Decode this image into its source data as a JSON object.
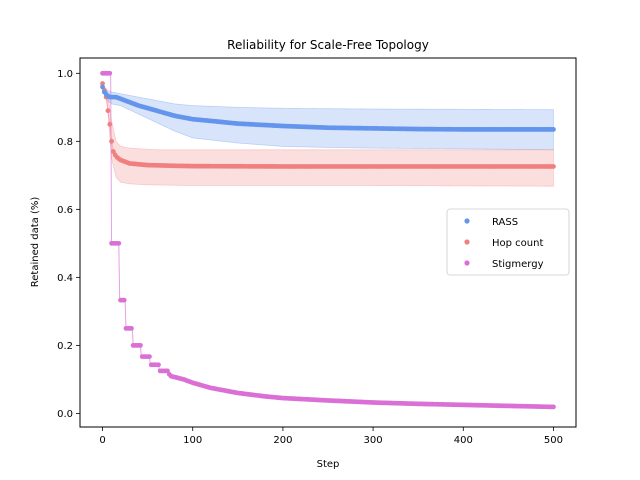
{
  "chart_data": {
    "type": "scatter",
    "title": "Reliability for Scale-Free Topology",
    "xlabel": "Step",
    "ylabel": "Retained data (%)",
    "xlim": [
      -25,
      525
    ],
    "ylim": [
      -0.04,
      1.045
    ],
    "xticks": [
      0,
      100,
      200,
      300,
      400,
      500
    ],
    "yticks": [
      0.0,
      0.2,
      0.4,
      0.6,
      0.8,
      1.0
    ],
    "grid": false,
    "legend_position": "center-right",
    "series": [
      {
        "name": "RASS",
        "color": "#6495ed",
        "band_color": "#6495ed",
        "mean": [
          [
            0,
            0.96
          ],
          [
            2,
            0.945
          ],
          [
            5,
            0.935
          ],
          [
            8,
            0.93
          ],
          [
            15,
            0.93
          ],
          [
            20,
            0.925
          ],
          [
            30,
            0.915
          ],
          [
            40,
            0.905
          ],
          [
            60,
            0.89
          ],
          [
            80,
            0.875
          ],
          [
            100,
            0.865
          ],
          [
            120,
            0.86
          ],
          [
            150,
            0.852
          ],
          [
            200,
            0.845
          ],
          [
            250,
            0.84
          ],
          [
            300,
            0.838
          ],
          [
            350,
            0.836
          ],
          [
            400,
            0.835
          ],
          [
            450,
            0.835
          ],
          [
            500,
            0.835
          ]
        ],
        "lower": [
          [
            0,
            0.96
          ],
          [
            5,
            0.92
          ],
          [
            10,
            0.91
          ],
          [
            20,
            0.905
          ],
          [
            40,
            0.88
          ],
          [
            60,
            0.855
          ],
          [
            80,
            0.83
          ],
          [
            100,
            0.81
          ],
          [
            150,
            0.795
          ],
          [
            200,
            0.785
          ],
          [
            250,
            0.782
          ],
          [
            300,
            0.78
          ],
          [
            400,
            0.778
          ],
          [
            500,
            0.775
          ]
        ],
        "upper": [
          [
            0,
            0.96
          ],
          [
            5,
            0.95
          ],
          [
            10,
            0.945
          ],
          [
            20,
            0.94
          ],
          [
            40,
            0.93
          ],
          [
            60,
            0.92
          ],
          [
            80,
            0.91
          ],
          [
            100,
            0.905
          ],
          [
            150,
            0.9
          ],
          [
            200,
            0.897
          ],
          [
            300,
            0.895
          ],
          [
            400,
            0.894
          ],
          [
            500,
            0.893
          ]
        ]
      },
      {
        "name": "Hop count",
        "color": "#f08080",
        "band_color": "#f08080",
        "mean": [
          [
            0,
            0.97
          ],
          [
            2,
            0.95
          ],
          [
            4,
            0.93
          ],
          [
            6,
            0.89
          ],
          [
            8,
            0.85
          ],
          [
            10,
            0.8
          ],
          [
            12,
            0.77
          ],
          [
            15,
            0.755
          ],
          [
            20,
            0.745
          ],
          [
            30,
            0.735
          ],
          [
            50,
            0.73
          ],
          [
            80,
            0.728
          ],
          [
            100,
            0.727
          ],
          [
            200,
            0.726
          ],
          [
            300,
            0.726
          ],
          [
            400,
            0.726
          ],
          [
            500,
            0.726
          ]
        ],
        "lower": [
          [
            0,
            0.97
          ],
          [
            5,
            0.92
          ],
          [
            10,
            0.75
          ],
          [
            15,
            0.695
          ],
          [
            20,
            0.68
          ],
          [
            30,
            0.675
          ],
          [
            50,
            0.672
          ],
          [
            100,
            0.67
          ],
          [
            300,
            0.67
          ],
          [
            500,
            0.668
          ]
        ],
        "upper": [
          [
            0,
            0.97
          ],
          [
            5,
            0.95
          ],
          [
            10,
            0.86
          ],
          [
            15,
            0.8
          ],
          [
            20,
            0.785
          ],
          [
            30,
            0.78
          ],
          [
            60,
            0.775
          ],
          [
            100,
            0.775
          ],
          [
            300,
            0.775
          ],
          [
            500,
            0.775
          ]
        ]
      },
      {
        "name": "Stigmergy",
        "color": "#da70d6",
        "band_color": "#da70d6",
        "mean": [
          [
            0,
            1.0
          ],
          [
            9,
            1.0
          ],
          [
            10,
            0.5
          ],
          [
            18,
            0.5
          ],
          [
            19,
            0.333
          ],
          [
            25,
            0.333
          ],
          [
            26,
            0.25
          ],
          [
            33,
            0.25
          ],
          [
            34,
            0.2
          ],
          [
            42,
            0.2
          ],
          [
            43,
            0.167
          ],
          [
            52,
            0.167
          ],
          [
            53,
            0.143
          ],
          [
            62,
            0.143
          ],
          [
            63,
            0.125
          ],
          [
            72,
            0.125
          ],
          [
            75,
            0.11
          ],
          [
            90,
            0.1
          ],
          [
            100,
            0.09
          ],
          [
            120,
            0.075
          ],
          [
            150,
            0.06
          ],
          [
            180,
            0.05
          ],
          [
            200,
            0.045
          ],
          [
            250,
            0.038
          ],
          [
            300,
            0.032
          ],
          [
            350,
            0.028
          ],
          [
            400,
            0.025
          ],
          [
            450,
            0.022
          ],
          [
            500,
            0.019
          ]
        ],
        "lower": [
          [
            0,
            1.0
          ],
          [
            9,
            1.0
          ],
          [
            10,
            0.5
          ],
          [
            18,
            0.5
          ],
          [
            19,
            0.333
          ],
          [
            25,
            0.333
          ],
          [
            26,
            0.25
          ],
          [
            33,
            0.25
          ],
          [
            34,
            0.2
          ],
          [
            42,
            0.2
          ],
          [
            43,
            0.167
          ],
          [
            52,
            0.167
          ],
          [
            53,
            0.143
          ],
          [
            62,
            0.143
          ],
          [
            63,
            0.125
          ],
          [
            72,
            0.125
          ],
          [
            75,
            0.11
          ],
          [
            90,
            0.1
          ],
          [
            100,
            0.09
          ],
          [
            120,
            0.075
          ],
          [
            150,
            0.06
          ],
          [
            180,
            0.05
          ],
          [
            200,
            0.045
          ],
          [
            250,
            0.038
          ],
          [
            300,
            0.032
          ],
          [
            350,
            0.028
          ],
          [
            400,
            0.025
          ],
          [
            450,
            0.022
          ],
          [
            500,
            0.019
          ]
        ],
        "upper": [
          [
            0,
            1.0
          ],
          [
            9,
            1.0
          ],
          [
            10,
            0.5
          ],
          [
            18,
            0.5
          ],
          [
            19,
            0.333
          ],
          [
            25,
            0.333
          ],
          [
            26,
            0.25
          ],
          [
            33,
            0.25
          ],
          [
            34,
            0.2
          ],
          [
            42,
            0.2
          ],
          [
            43,
            0.167
          ],
          [
            52,
            0.167
          ],
          [
            53,
            0.143
          ],
          [
            62,
            0.143
          ],
          [
            63,
            0.125
          ],
          [
            72,
            0.125
          ],
          [
            75,
            0.11
          ],
          [
            90,
            0.1
          ],
          [
            100,
            0.09
          ],
          [
            120,
            0.075
          ],
          [
            150,
            0.06
          ],
          [
            180,
            0.05
          ],
          [
            200,
            0.045
          ],
          [
            250,
            0.038
          ],
          [
            300,
            0.032
          ],
          [
            350,
            0.028
          ],
          [
            400,
            0.025
          ],
          [
            450,
            0.022
          ],
          [
            500,
            0.019
          ]
        ]
      }
    ]
  }
}
